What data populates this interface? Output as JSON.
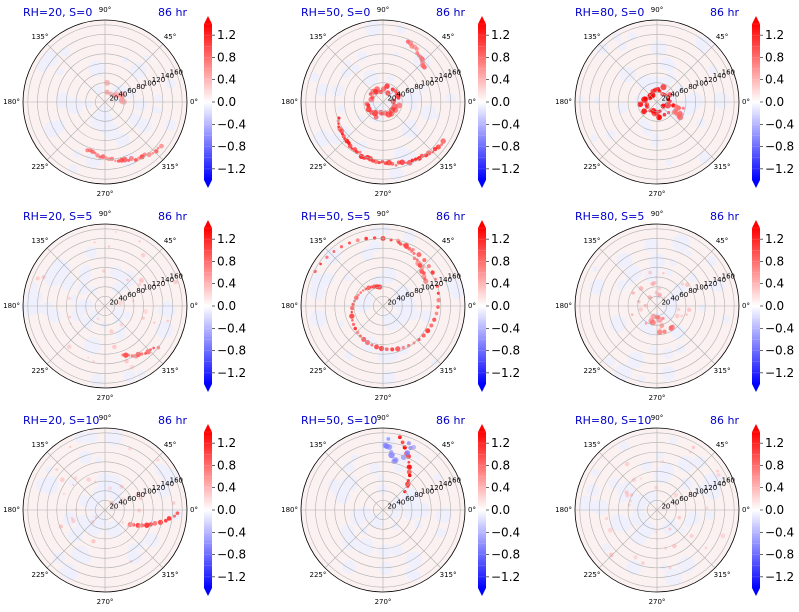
{
  "figure": {
    "panels": [
      {
        "title": "RH=20, S=0",
        "time": "86 hr"
      },
      {
        "title": "RH=50, S=0",
        "time": "86 hr"
      },
      {
        "title": "RH=80, S=0",
        "time": "86 hr"
      },
      {
        "title": "RH=20, S=5",
        "time": "86 hr"
      },
      {
        "title": "RH=50, S=5",
        "time": "86 hr"
      },
      {
        "title": "RH=80, S=5",
        "time": "86 hr"
      },
      {
        "title": "RH=20, S=10",
        "time": "86 hr"
      },
      {
        "title": "RH=50, S=10",
        "time": "86 hr"
      },
      {
        "title": "RH=80, S=10",
        "time": "86 hr"
      }
    ],
    "angular_ticks": [
      "0°",
      "45°",
      "90°",
      "135°",
      "180°",
      "225°",
      "270°",
      "315°"
    ],
    "radial_ticks": [
      "20",
      "40",
      "60",
      "80",
      "100",
      "120",
      "140",
      "160"
    ],
    "colorbar_ticks": [
      "1.2",
      "0.8",
      "0.4",
      "0.0",
      "−0.4",
      "−0.8",
      "−1.2"
    ],
    "colormap": "bwr",
    "colors": {
      "title": "#0000cc",
      "positive": "#ff0000",
      "negative": "#0000ff",
      "neutral": "#ffffff",
      "grid": "#b0b0b0"
    }
  },
  "chart_data": [
    {
      "type": "heatmap",
      "projection": "polar",
      "title": "RH=20, S=0",
      "annotation": "86 hr",
      "r_ticks": [
        20,
        40,
        60,
        80,
        100,
        120,
        140,
        160
      ],
      "theta_ticks_deg": [
        0,
        45,
        90,
        135,
        180,
        225,
        270,
        315
      ],
      "color_range": [
        -1.4,
        1.4
      ],
      "colorbar_ticks": [
        1.2,
        0.8,
        0.4,
        0.0,
        -0.4,
        -0.8,
        -1.2
      ],
      "features": [
        {
          "kind": "arc",
          "r": [
            105,
            150
          ],
          "theta_deg": [
            250,
            325
          ],
          "intensity": 0.7
        },
        {
          "kind": "patch",
          "r": [
            20,
            40
          ],
          "theta_deg": [
            0,
            90
          ],
          "intensity": 0.4
        }
      ]
    },
    {
      "type": "heatmap",
      "projection": "polar",
      "title": "RH=50, S=0",
      "annotation": "86 hr",
      "r_ticks": [
        20,
        40,
        60,
        80,
        100,
        120,
        140,
        160
      ],
      "theta_ticks_deg": [
        0,
        45,
        90,
        135,
        180,
        225,
        270,
        315
      ],
      "color_range": [
        -1.4,
        1.4
      ],
      "colorbar_ticks": [
        1.2,
        0.8,
        0.4,
        0.0,
        -0.4,
        -0.8,
        -1.2
      ],
      "features": [
        {
          "kind": "ring",
          "r": [
            20,
            35
          ],
          "intensity": 0.8
        },
        {
          "kind": "arc",
          "r": [
            100,
            150
          ],
          "theta_deg": [
            200,
            330
          ],
          "intensity": 0.9
        },
        {
          "kind": "arc",
          "r": [
            110,
            140
          ],
          "theta_deg": [
            40,
            70
          ],
          "intensity": 0.6
        }
      ]
    },
    {
      "type": "heatmap",
      "projection": "polar",
      "title": "RH=80, S=0",
      "annotation": "86 hr",
      "r_ticks": [
        20,
        40,
        60,
        80,
        100,
        120,
        140,
        160
      ],
      "theta_ticks_deg": [
        0,
        45,
        90,
        135,
        180,
        225,
        270,
        315
      ],
      "color_range": [
        -1.4,
        1.4
      ],
      "colorbar_ticks": [
        1.2,
        0.8,
        0.4,
        0.0,
        -0.4,
        -0.8,
        -1.2
      ],
      "features": [
        {
          "kind": "ring",
          "r": [
            15,
            35
          ],
          "intensity": 1.0
        },
        {
          "kind": "patch",
          "r": [
            40,
            60
          ],
          "theta_deg": [
            320,
            350
          ],
          "intensity": 0.6
        }
      ]
    },
    {
      "type": "heatmap",
      "projection": "polar",
      "title": "RH=20, S=5",
      "annotation": "86 hr",
      "r_ticks": [
        20,
        40,
        60,
        80,
        100,
        120,
        140,
        160
      ],
      "theta_ticks_deg": [
        0,
        45,
        90,
        135,
        180,
        225,
        270,
        315
      ],
      "color_range": [
        -1.4,
        1.4
      ],
      "colorbar_ticks": [
        1.2,
        0.8,
        0.4,
        0.0,
        -0.4,
        -0.8,
        -1.2
      ],
      "features": [
        {
          "kind": "arc",
          "r": [
            110,
            140
          ],
          "theta_deg": [
            290,
            325
          ],
          "intensity": 0.7
        },
        {
          "kind": "scatter",
          "r": [
            20,
            160
          ],
          "intensity": 0.3
        }
      ]
    },
    {
      "type": "heatmap",
      "projection": "polar",
      "title": "RH=50, S=5",
      "annotation": "86 hr",
      "r_ticks": [
        20,
        40,
        60,
        80,
        100,
        120,
        140,
        160
      ],
      "theta_ticks_deg": [
        0,
        45,
        90,
        135,
        180,
        225,
        270,
        315
      ],
      "color_range": [
        -1.4,
        1.4
      ],
      "colorbar_ticks": [
        1.2,
        0.8,
        0.4,
        0.0,
        -0.4,
        -0.8,
        -1.2
      ],
      "features": [
        {
          "kind": "spiral",
          "r": [
            40,
            160
          ],
          "intensity": 0.8
        },
        {
          "kind": "arc",
          "r": [
            100,
            140
          ],
          "theta_deg": [
            30,
            80
          ],
          "intensity": 0.7
        }
      ]
    },
    {
      "type": "heatmap",
      "projection": "polar",
      "title": "RH=80, S=5",
      "annotation": "86 hr",
      "r_ticks": [
        20,
        40,
        60,
        80,
        100,
        120,
        140,
        160
      ],
      "theta_ticks_deg": [
        0,
        45,
        90,
        135,
        180,
        225,
        270,
        315
      ],
      "color_range": [
        -1.4,
        1.4
      ],
      "colorbar_ticks": [
        1.2,
        0.8,
        0.4,
        0.0,
        -0.4,
        -0.8,
        -1.2
      ],
      "features": [
        {
          "kind": "patch",
          "r": [
            20,
            60
          ],
          "theta_deg": [
            220,
            320
          ],
          "intensity": 0.6
        },
        {
          "kind": "scatter",
          "r": [
            20,
            80
          ],
          "intensity": 0.4
        }
      ]
    },
    {
      "type": "heatmap",
      "projection": "polar",
      "title": "RH=20, S=10",
      "annotation": "86 hr",
      "r_ticks": [
        20,
        40,
        60,
        80,
        100,
        120,
        140,
        160
      ],
      "theta_ticks_deg": [
        0,
        45,
        90,
        135,
        180,
        225,
        270,
        315
      ],
      "color_range": [
        -1.4,
        1.4
      ],
      "colorbar_ticks": [
        1.2,
        0.8,
        0.4,
        0.0,
        -0.4,
        -0.8,
        -1.2
      ],
      "features": [
        {
          "kind": "arc",
          "r": [
            60,
            160
          ],
          "theta_deg": [
            330,
            360
          ],
          "intensity": 0.8
        },
        {
          "kind": "scatter",
          "r": [
            20,
            160
          ],
          "intensity": 0.3
        }
      ]
    },
    {
      "type": "heatmap",
      "projection": "polar",
      "title": "RH=50, S=10",
      "annotation": "86 hr",
      "r_ticks": [
        20,
        40,
        60,
        80,
        100,
        120,
        140,
        160
      ],
      "theta_ticks_deg": [
        0,
        45,
        90,
        135,
        180,
        225,
        270,
        315
      ],
      "color_range": [
        -1.4,
        1.4
      ],
      "colorbar_ticks": [
        1.2,
        0.8,
        0.4,
        0.0,
        -0.4,
        -0.8,
        -1.2
      ],
      "features": [
        {
          "kind": "arc",
          "r": [
            60,
            160
          ],
          "theta_deg": [
            40,
            80
          ],
          "intensity": 1.0
        },
        {
          "kind": "patch",
          "r": [
            100,
            150
          ],
          "theta_deg": [
            60,
            90
          ],
          "intensity": -0.5
        }
      ]
    },
    {
      "type": "heatmap",
      "projection": "polar",
      "title": "RH=80, S=10",
      "annotation": "86 hr",
      "r_ticks": [
        20,
        40,
        60,
        80,
        100,
        120,
        140,
        160
      ],
      "theta_ticks_deg": [
        0,
        45,
        90,
        135,
        180,
        225,
        270,
        315
      ],
      "color_range": [
        -1.4,
        1.4
      ],
      "colorbar_ticks": [
        1.2,
        0.8,
        0.4,
        0.0,
        -0.4,
        -0.8,
        -1.2
      ],
      "features": [
        {
          "kind": "scatter",
          "r": [
            40,
            160
          ],
          "intensity": 0.3
        }
      ]
    }
  ]
}
